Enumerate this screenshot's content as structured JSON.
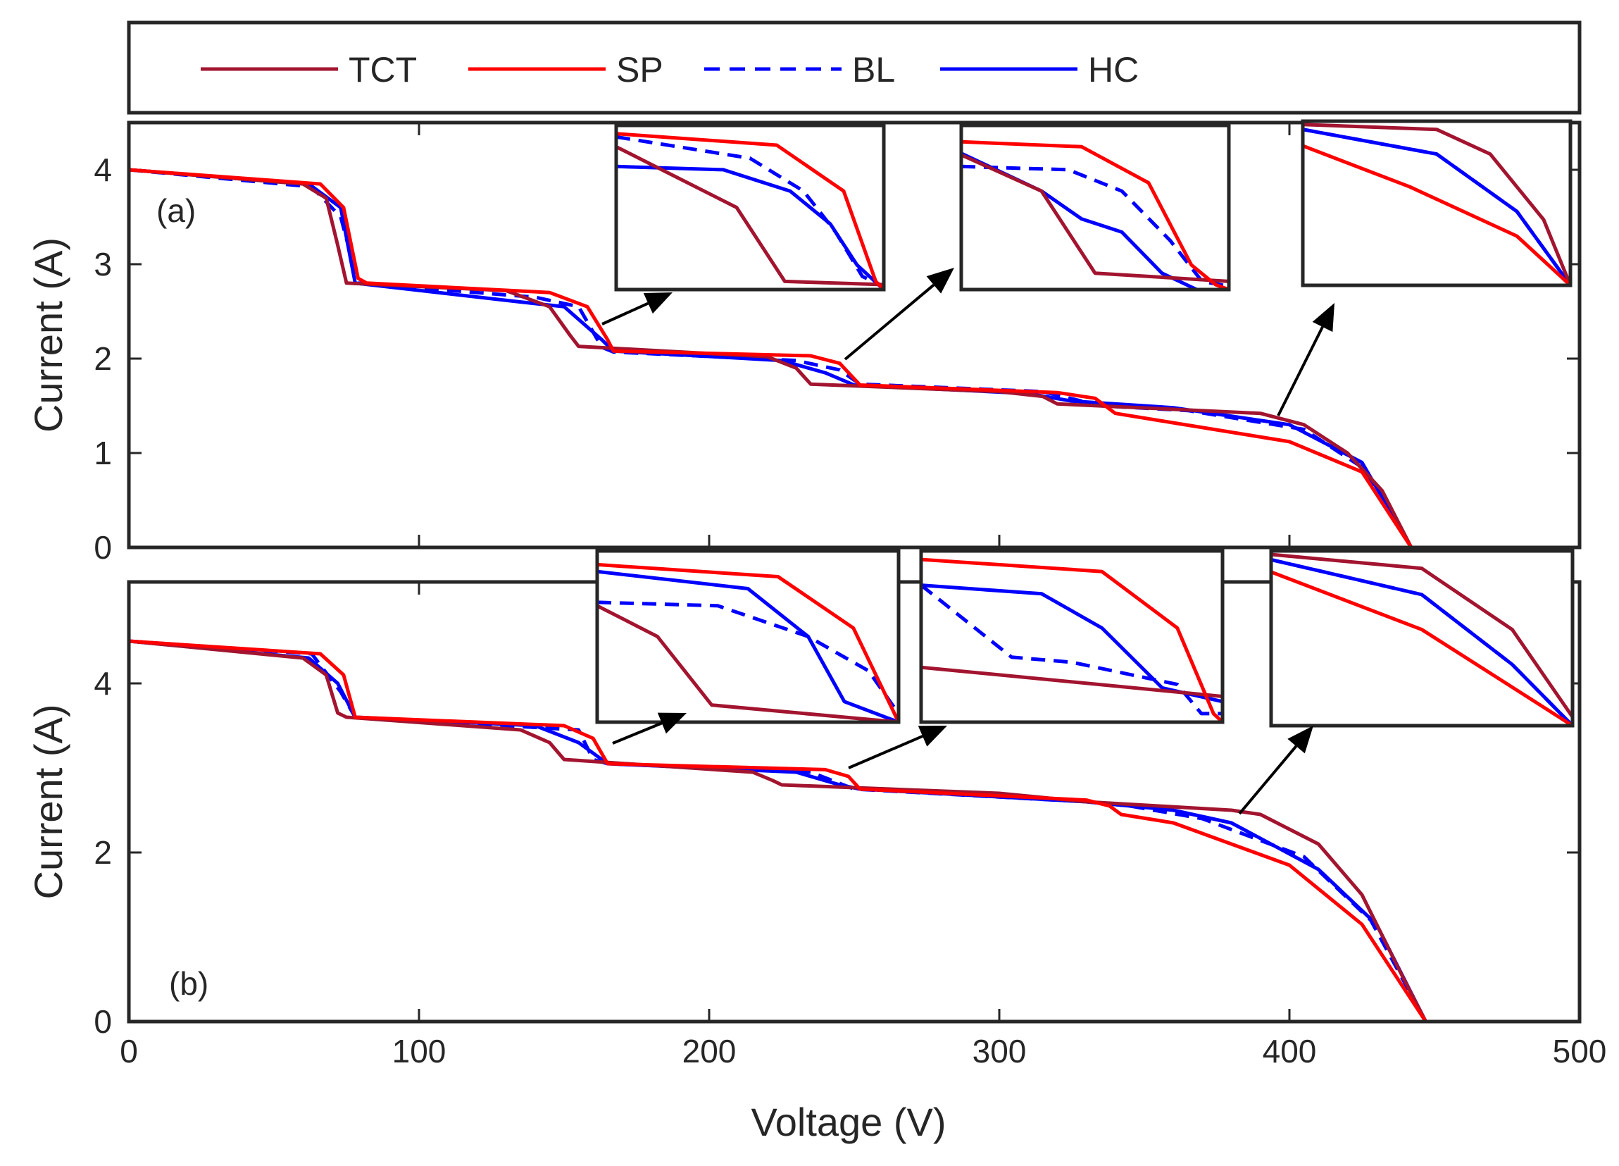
{
  "legend": {
    "items": [
      {
        "label": "TCT",
        "color": "#A2142F",
        "dash": "solid"
      },
      {
        "label": "SP",
        "color": "#FF0000",
        "dash": "solid"
      },
      {
        "label": "BL",
        "color": "#0000FF",
        "dash": "dashed"
      },
      {
        "label": "HC",
        "color": "#0000FF",
        "dash": "solid"
      }
    ]
  },
  "xlabel": "Voltage (V)",
  "chart_data": [
    {
      "type": "line",
      "panel_label": "(a)",
      "xlabel": "Voltage (V)",
      "ylabel": "Current (A)",
      "xlim": [
        0,
        500
      ],
      "ylim": [
        0,
        4.5
      ],
      "xticks": [
        "0",
        "100",
        "200",
        "300",
        "400",
        "500"
      ],
      "yticks": [
        "0",
        "1",
        "2",
        "3",
        "4"
      ],
      "series": [
        {
          "name": "TCT",
          "points": [
            [
              0,
              4.0
            ],
            [
              60,
              3.85
            ],
            [
              68,
              3.7
            ],
            [
              72,
              3.2
            ],
            [
              75,
              2.8
            ],
            [
              130,
              2.72
            ],
            [
              145,
              2.55
            ],
            [
              152,
              2.25
            ],
            [
              155,
              2.13
            ],
            [
              220,
              2.02
            ],
            [
              230,
              1.9
            ],
            [
              235,
              1.73
            ],
            [
              300,
              1.65
            ],
            [
              315,
              1.6
            ],
            [
              320,
              1.52
            ],
            [
              390,
              1.42
            ],
            [
              405,
              1.3
            ],
            [
              420,
              1.0
            ],
            [
              432,
              0.6
            ],
            [
              442,
              0.0
            ]
          ]
        },
        {
          "name": "SP",
          "points": [
            [
              0,
              4.0
            ],
            [
              66,
              3.85
            ],
            [
              74,
              3.6
            ],
            [
              79,
              2.85
            ],
            [
              82,
              2.8
            ],
            [
              145,
              2.7
            ],
            [
              158,
              2.55
            ],
            [
              165,
              2.2
            ],
            [
              167,
              2.08
            ],
            [
              235,
              2.03
            ],
            [
              245,
              1.95
            ],
            [
              252,
              1.72
            ],
            [
              320,
              1.64
            ],
            [
              333,
              1.58
            ],
            [
              340,
              1.42
            ],
            [
              360,
              1.32
            ],
            [
              400,
              1.12
            ],
            [
              425,
              0.8
            ],
            [
              442,
              0.0
            ]
          ]
        },
        {
          "name": "BL",
          "points": [
            [
              0,
              4.0
            ],
            [
              63,
              3.82
            ],
            [
              73,
              3.5
            ],
            [
              79,
              2.8
            ],
            [
              140,
              2.65
            ],
            [
              155,
              2.55
            ],
            [
              163,
              2.12
            ],
            [
              167,
              2.07
            ],
            [
              230,
              1.98
            ],
            [
              245,
              1.88
            ],
            [
              252,
              1.73
            ],
            [
              315,
              1.65
            ],
            [
              335,
              1.5
            ],
            [
              365,
              1.45
            ],
            [
              405,
              1.25
            ],
            [
              425,
              0.85
            ],
            [
              442,
              0.0
            ]
          ]
        },
        {
          "name": "HC",
          "points": [
            [
              0,
              4.0
            ],
            [
              62,
              3.85
            ],
            [
              73,
              3.6
            ],
            [
              78,
              2.8
            ],
            [
              135,
              2.6
            ],
            [
              150,
              2.55
            ],
            [
              163,
              2.2
            ],
            [
              167,
              2.08
            ],
            [
              225,
              1.98
            ],
            [
              240,
              1.85
            ],
            [
              250,
              1.72
            ],
            [
              310,
              1.63
            ],
            [
              325,
              1.55
            ],
            [
              360,
              1.48
            ],
            [
              400,
              1.3
            ],
            [
              425,
              0.9
            ],
            [
              442,
              0.0
            ]
          ]
        }
      ]
    },
    {
      "type": "line",
      "panel_label": "(b)",
      "xlabel": "Voltage (V)",
      "ylabel": "Current (A)",
      "xlim": [
        0,
        500
      ],
      "ylim": [
        0,
        5.2
      ],
      "xticks": [
        "0",
        "100",
        "200",
        "300",
        "400",
        "500"
      ],
      "yticks": [
        "0",
        "2",
        "4"
      ],
      "series": [
        {
          "name": "TCT",
          "points": [
            [
              0,
              4.5
            ],
            [
              60,
              4.3
            ],
            [
              68,
              4.1
            ],
            [
              72,
              3.65
            ],
            [
              75,
              3.6
            ],
            [
              135,
              3.45
            ],
            [
              145,
              3.3
            ],
            [
              150,
              3.1
            ],
            [
              215,
              2.95
            ],
            [
              222,
              2.85
            ],
            [
              225,
              2.8
            ],
            [
              300,
              2.7
            ],
            [
              330,
              2.6
            ],
            [
              380,
              2.5
            ],
            [
              390,
              2.45
            ],
            [
              410,
              2.1
            ],
            [
              425,
              1.5
            ],
            [
              438,
              0.6
            ],
            [
              447,
              0.0
            ]
          ]
        },
        {
          "name": "SP",
          "points": [
            [
              0,
              4.5
            ],
            [
              66,
              4.35
            ],
            [
              74,
              4.1
            ],
            [
              78,
              3.6
            ],
            [
              150,
              3.5
            ],
            [
              160,
              3.35
            ],
            [
              165,
              3.05
            ],
            [
              240,
              2.98
            ],
            [
              248,
              2.9
            ],
            [
              252,
              2.75
            ],
            [
              330,
              2.62
            ],
            [
              338,
              2.55
            ],
            [
              342,
              2.45
            ],
            [
              360,
              2.35
            ],
            [
              400,
              1.85
            ],
            [
              425,
              1.15
            ],
            [
              447,
              0.0
            ]
          ]
        },
        {
          "name": "BL",
          "points": [
            [
              0,
              4.5
            ],
            [
              63,
              4.35
            ],
            [
              73,
              3.9
            ],
            [
              78,
              3.6
            ],
            [
              155,
              3.45
            ],
            [
              160,
              3.1
            ],
            [
              165,
              3.05
            ],
            [
              235,
              2.95
            ],
            [
              250,
              2.75
            ],
            [
              330,
              2.6
            ],
            [
              345,
              2.55
            ],
            [
              370,
              2.4
            ],
            [
              405,
              1.95
            ],
            [
              428,
              1.2
            ],
            [
              447,
              0.0
            ]
          ]
        },
        {
          "name": "HC",
          "points": [
            [
              0,
              4.5
            ],
            [
              62,
              4.3
            ],
            [
              72,
              4.0
            ],
            [
              78,
              3.6
            ],
            [
              140,
              3.5
            ],
            [
              155,
              3.3
            ],
            [
              165,
              3.05
            ],
            [
              230,
              2.95
            ],
            [
              245,
              2.8
            ],
            [
              252,
              2.75
            ],
            [
              330,
              2.6
            ],
            [
              360,
              2.5
            ],
            [
              380,
              2.35
            ],
            [
              410,
              1.8
            ],
            [
              430,
              1.15
            ],
            [
              447,
              0.0
            ]
          ]
        }
      ]
    }
  ],
  "insets": [
    {
      "panel": "(a)",
      "curves": {
        "TCT": [
          [
            0,
            0.87
          ],
          [
            0.45,
            0.5
          ],
          [
            0.63,
            0.05
          ],
          [
            1,
            0.03
          ]
        ],
        "SP": [
          [
            0,
            0.95
          ],
          [
            0.6,
            0.88
          ],
          [
            0.85,
            0.6
          ],
          [
            0.97,
            0.05
          ],
          [
            1,
            0.0
          ]
        ],
        "BL": [
          [
            0,
            0.93
          ],
          [
            0.5,
            0.8
          ],
          [
            0.7,
            0.6
          ],
          [
            0.82,
            0.35
          ],
          [
            0.92,
            0.08
          ],
          [
            1,
            0.02
          ]
        ],
        "HC": [
          [
            0,
            0.75
          ],
          [
            0.4,
            0.73
          ],
          [
            0.65,
            0.6
          ],
          [
            0.8,
            0.4
          ],
          [
            0.9,
            0.15
          ],
          [
            1,
            0.0
          ]
        ]
      }
    },
    {
      "panel": "(a)",
      "curves": {
        "TCT": [
          [
            0,
            0.82
          ],
          [
            0.3,
            0.6
          ],
          [
            0.5,
            0.1
          ],
          [
            1,
            0.05
          ]
        ],
        "SP": [
          [
            0,
            0.9
          ],
          [
            0.45,
            0.87
          ],
          [
            0.7,
            0.65
          ],
          [
            0.86,
            0.15
          ],
          [
            0.95,
            0.03
          ],
          [
            1,
            0.0
          ]
        ],
        "BL": [
          [
            0,
            0.75
          ],
          [
            0.4,
            0.73
          ],
          [
            0.6,
            0.6
          ],
          [
            0.78,
            0.3
          ],
          [
            0.9,
            0.05
          ],
          [
            1,
            0.02
          ]
        ],
        "HC": [
          [
            0,
            0.83
          ],
          [
            0.3,
            0.6
          ],
          [
            0.45,
            0.43
          ],
          [
            0.6,
            0.35
          ],
          [
            0.75,
            0.1
          ],
          [
            0.88,
            0.0
          ]
        ]
      }
    },
    {
      "panel": "(a)",
      "curves": {
        "TCT": [
          [
            0,
            0.98
          ],
          [
            0.5,
            0.95
          ],
          [
            0.7,
            0.8
          ],
          [
            0.9,
            0.4
          ],
          [
            1,
            0.0
          ]
        ],
        "SP": [
          [
            0,
            0.85
          ],
          [
            0.4,
            0.6
          ],
          [
            0.8,
            0.3
          ],
          [
            1,
            0.0
          ]
        ],
        "BL": [
          [
            0,
            0.95
          ],
          [
            0.5,
            0.8
          ],
          [
            0.8,
            0.45
          ],
          [
            1,
            0.0
          ]
        ],
        "HC": [
          [
            0,
            0.95
          ],
          [
            0.5,
            0.8
          ],
          [
            0.8,
            0.45
          ],
          [
            1,
            0.0
          ]
        ]
      }
    },
    {
      "panel": "(b)",
      "curves": {
        "TCT": [
          [
            0,
            0.68
          ],
          [
            0.2,
            0.5
          ],
          [
            0.38,
            0.1
          ],
          [
            1,
            0.0
          ]
        ],
        "SP": [
          [
            0,
            0.92
          ],
          [
            0.6,
            0.85
          ],
          [
            0.85,
            0.55
          ],
          [
            1,
            0.0
          ]
        ],
        "BL": [
          [
            0,
            0.7
          ],
          [
            0.4,
            0.68
          ],
          [
            0.7,
            0.5
          ],
          [
            0.9,
            0.3
          ],
          [
            1,
            0.05
          ]
        ],
        "HC": [
          [
            0,
            0.88
          ],
          [
            0.5,
            0.78
          ],
          [
            0.7,
            0.5
          ],
          [
            0.82,
            0.12
          ],
          [
            1,
            0.0
          ]
        ]
      }
    },
    {
      "panel": "(b)",
      "curves": {
        "TCT": [
          [
            0,
            0.32
          ],
          [
            1,
            0.15
          ]
        ],
        "SP": [
          [
            0,
            0.95
          ],
          [
            0.6,
            0.88
          ],
          [
            0.85,
            0.55
          ],
          [
            0.97,
            0.05
          ],
          [
            1,
            0.0
          ]
        ],
        "BL": [
          [
            0,
            0.8
          ],
          [
            0.3,
            0.38
          ],
          [
            0.5,
            0.35
          ],
          [
            0.85,
            0.22
          ],
          [
            0.93,
            0.05
          ],
          [
            1,
            0.05
          ]
        ],
        "HC": [
          [
            0,
            0.8
          ],
          [
            0.4,
            0.75
          ],
          [
            0.6,
            0.55
          ],
          [
            0.8,
            0.2
          ],
          [
            1,
            0.12
          ]
        ]
      }
    },
    {
      "panel": "(b)",
      "curves": {
        "TCT": [
          [
            0,
            0.98
          ],
          [
            0.5,
            0.9
          ],
          [
            0.8,
            0.55
          ],
          [
            1,
            0.05
          ]
        ],
        "SP": [
          [
            0,
            0.88
          ],
          [
            0.5,
            0.55
          ],
          [
            1,
            0.0
          ]
        ],
        "BL": [
          [
            0,
            0.95
          ],
          [
            0.5,
            0.75
          ],
          [
            0.8,
            0.35
          ],
          [
            1,
            0.0
          ]
        ],
        "HC": [
          [
            0,
            0.95
          ],
          [
            0.5,
            0.75
          ],
          [
            0.8,
            0.35
          ],
          [
            1,
            0.0
          ]
        ]
      }
    }
  ]
}
